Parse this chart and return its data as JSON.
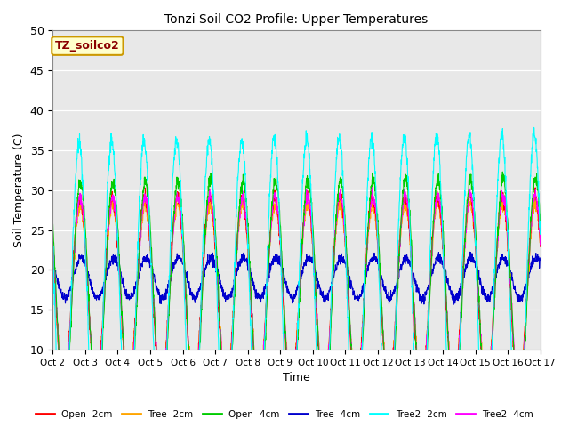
{
  "title": "Tonzi Soil CO2 Profile: Upper Temperatures",
  "xlabel": "Time",
  "ylabel": "Soil Temperature (C)",
  "ylim": [
    10,
    50
  ],
  "annotation": "TZ_soilco2",
  "bg_color": "#e8e8e8",
  "xtick_labels": [
    "Oct 2",
    "Oct 3",
    "Oct 4",
    "Oct 5",
    "Oct 6",
    "Oct 7",
    "Oct 8",
    "Oct 9",
    "Oct 10",
    "Oct 11",
    "Oct 12",
    "Oct 13",
    "Oct 14",
    "Oct 15",
    "Oct 16",
    "Oct 17"
  ],
  "legend": [
    {
      "label": "Open -2cm",
      "color": "#ff0000"
    },
    {
      "label": "Tree -2cm",
      "color": "#ffa500"
    },
    {
      "label": "Open -4cm",
      "color": "#00cc00"
    },
    {
      "label": "Tree -4cm",
      "color": "#0000cd"
    },
    {
      "label": "Tree2 -2cm",
      "color": "#00ffff"
    },
    {
      "label": "Tree2 -4cm",
      "color": "#ff00ff"
    }
  ],
  "days": 15,
  "samples_per_day": 144,
  "series": {
    "open_2cm": {
      "base": 17,
      "amp": 12,
      "amp_trend": 0.3,
      "phase_hr": 14.0,
      "noise": 0.4,
      "color": "#ff0000"
    },
    "tree_2cm": {
      "base": 17,
      "amp": 11,
      "amp_trend": 0.3,
      "phase_hr": 14.2,
      "noise": 0.4,
      "color": "#ffa500"
    },
    "open_4cm": {
      "base": 17,
      "amp": 14,
      "amp_trend": 0.5,
      "phase_hr": 14.5,
      "noise": 0.4,
      "color": "#00cc00"
    },
    "tree_4cm": {
      "base": 19,
      "amp": 2.5,
      "amp_trend": 0.1,
      "phase_hr": 15.0,
      "noise": 0.3,
      "color": "#0000cd"
    },
    "tree2_2cm": {
      "base": 16,
      "amp": 20,
      "amp_trend": 1.0,
      "phase_hr": 13.5,
      "noise": 0.5,
      "color": "#00ffff"
    },
    "tree2_4cm": {
      "base": 17,
      "amp": 12,
      "amp_trend": 0.4,
      "phase_hr": 14.3,
      "noise": 0.4,
      "color": "#ff00ff"
    }
  },
  "plot_order": [
    "tree_4cm",
    "tree_2cm",
    "open_2cm",
    "tree2_4cm",
    "open_4cm",
    "tree2_2cm"
  ]
}
